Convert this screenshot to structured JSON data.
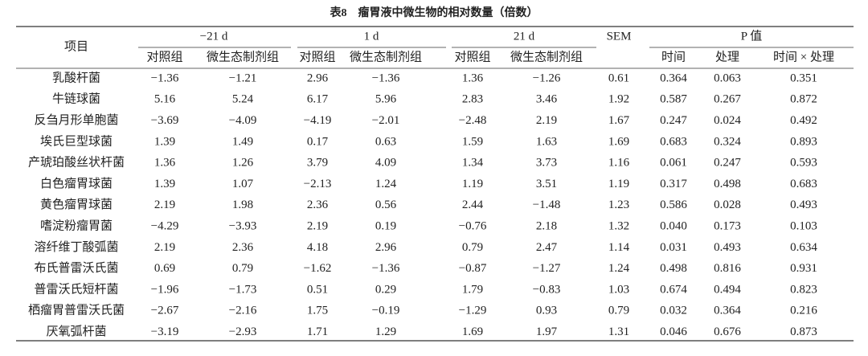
{
  "table": {
    "title": "表8　瘤胃液中微生物的相对数量（倍数）",
    "header": {
      "item": "项目",
      "groups": [
        "−21 d",
        "1 d",
        "21 d",
        "SEM",
        "P 值"
      ],
      "subheaders": [
        "对照组",
        "微生态制剂组",
        "对照组",
        "微生态制剂组",
        "对照组",
        "微生态制剂组",
        "时间",
        "处理",
        "时间 × 处理"
      ]
    },
    "rows": [
      [
        "乳酸杆菌",
        "−1.36",
        "−1.21",
        "2.96",
        "−1.36",
        "1.36",
        "−1.26",
        "0.61",
        "0.364",
        "0.063",
        "0.351"
      ],
      [
        "牛链球菌",
        "5.16",
        "5.24",
        "6.17",
        "5.96",
        "2.83",
        "3.46",
        "1.92",
        "0.587",
        "0.267",
        "0.872"
      ],
      [
        "反刍月形单胞菌",
        "−3.69",
        "−4.09",
        "−4.19",
        "−2.01",
        "−2.48",
        "2.19",
        "1.67",
        "0.247",
        "0.024",
        "0.492"
      ],
      [
        "埃氏巨型球菌",
        "1.39",
        "1.49",
        "0.17",
        "0.63",
        "1.59",
        "1.63",
        "1.69",
        "0.683",
        "0.324",
        "0.893"
      ],
      [
        "产琥珀酸丝状杆菌",
        "1.36",
        "1.26",
        "3.79",
        "4.09",
        "1.34",
        "3.73",
        "1.16",
        "0.061",
        "0.247",
        "0.593"
      ],
      [
        "白色瘤胃球菌",
        "1.39",
        "1.07",
        "−2.13",
        "1.24",
        "1.19",
        "3.51",
        "1.19",
        "0.317",
        "0.498",
        "0.683"
      ],
      [
        "黄色瘤胃球菌",
        "2.19",
        "1.98",
        "2.36",
        "0.56",
        "2.44",
        "−1.48",
        "1.23",
        "0.586",
        "0.028",
        "0.493"
      ],
      [
        "嗜淀粉瘤胃菌",
        "−4.29",
        "−3.93",
        "2.19",
        "0.19",
        "−0.76",
        "2.18",
        "1.32",
        "0.040",
        "0.173",
        "0.103"
      ],
      [
        "溶纤维丁酸弧菌",
        "2.19",
        "2.36",
        "4.18",
        "2.96",
        "0.79",
        "2.47",
        "1.14",
        "0.031",
        "0.493",
        "0.634"
      ],
      [
        "布氏普雷沃氏菌",
        "0.69",
        "0.79",
        "−1.62",
        "−1.36",
        "−0.87",
        "−1.27",
        "1.24",
        "0.498",
        "0.816",
        "0.931"
      ],
      [
        "普雷沃氏短杆菌",
        "−1.96",
        "−1.73",
        "0.51",
        "0.29",
        "1.79",
        "−0.83",
        "1.03",
        "0.674",
        "0.494",
        "0.823"
      ],
      [
        "栖瘤胃普雷沃氏菌",
        "−2.67",
        "−2.16",
        "1.75",
        "−0.19",
        "−1.29",
        "0.93",
        "0.79",
        "0.032",
        "0.364",
        "0.216"
      ],
      [
        "厌氧弧杆菌",
        "−3.19",
        "−2.93",
        "1.71",
        "1.29",
        "1.69",
        "1.97",
        "1.31",
        "0.046",
        "0.676",
        "0.873"
      ]
    ]
  }
}
